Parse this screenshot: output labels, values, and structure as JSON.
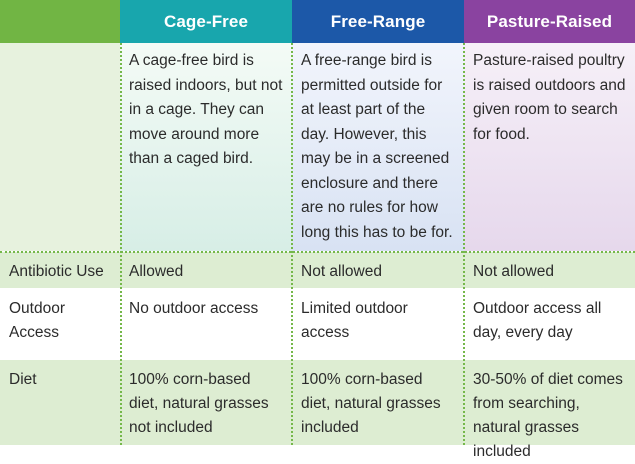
{
  "header": {
    "corner": "",
    "columns": [
      "Cage-Free",
      "Free-Range",
      "Pasture-Raised"
    ]
  },
  "descriptions": [
    "A cage-free bird is raised indoors, but not in a cage. They can move around more than a caged bird.",
    "A free-range bird is permitted outside for at least part of the day. However, this may be in a screened enclosure and there are no rules for how long this has to be for.",
    "Pasture-raised poultry is raised outdoors and given room to search for food."
  ],
  "rows": [
    {
      "label": "Antibiotic Use",
      "values": [
        "Allowed",
        "Not allowed",
        "Not allowed"
      ]
    },
    {
      "label": "Outdoor Access",
      "values": [
        "No outdoor access",
        "Limited outdoor access",
        "Outdoor access all day, every day"
      ]
    },
    {
      "label": "Diet",
      "values": [
        "100% corn-based diet, natural grasses not included",
        "100% corn-based diet, natural grasses included",
        "30-50% of diet comes from searching, natural grasses included"
      ]
    }
  ],
  "colors": {
    "corner_header": "#71b544",
    "cage_free_header": "#18a6ad",
    "free_range_header": "#1c58a8",
    "pasture_raised_header": "#8a43a0",
    "shaded_row": "#ddedd2",
    "gridline": "#75b84a"
  }
}
